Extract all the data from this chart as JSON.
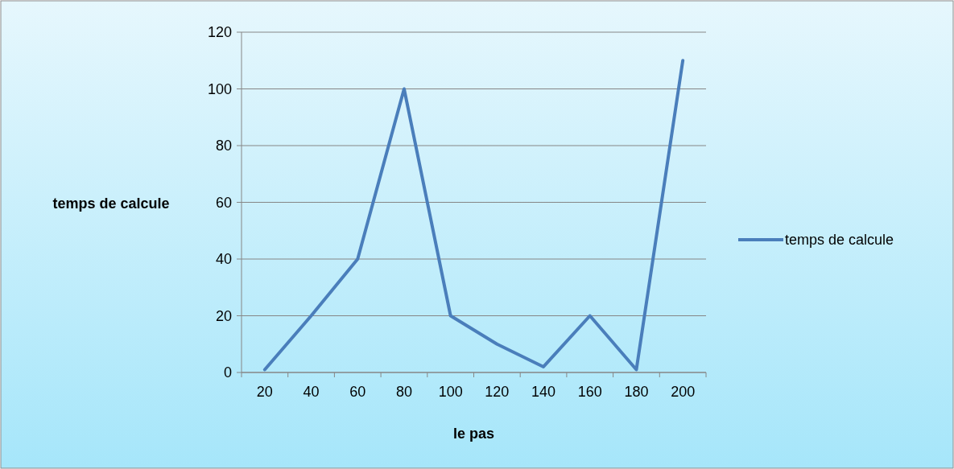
{
  "chart_data": {
    "type": "line",
    "xlabel": "le pas",
    "ylabel": "temps de calcule",
    "categories": [
      "20",
      "40",
      "60",
      "80",
      "100",
      "120",
      "140",
      "160",
      "180",
      "200"
    ],
    "series": [
      {
        "name": "temps de calcule",
        "color": "#4a7ebb",
        "values": [
          1,
          20,
          40,
          100,
          20,
          10,
          2,
          20,
          1,
          110
        ]
      }
    ],
    "ylim": [
      0,
      120
    ],
    "yticks": [
      0,
      20,
      40,
      60,
      80,
      100,
      120
    ],
    "grid": "y",
    "legend": "right"
  }
}
